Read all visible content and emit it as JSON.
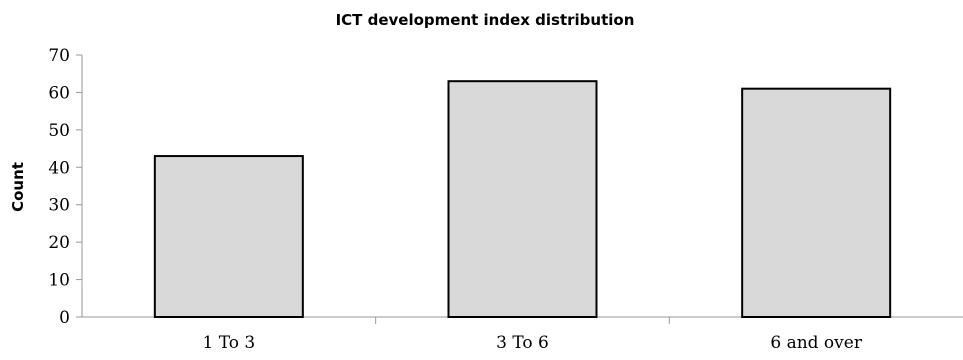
{
  "chart_data": {
    "type": "bar",
    "title": "ICT development index distribution",
    "xlabel": "",
    "ylabel": "Count",
    "categories": [
      "1 To 3",
      "3 To 6",
      "6 and over"
    ],
    "values": [
      43,
      63,
      61
    ],
    "ylim": [
      0,
      70
    ],
    "yticks": [
      "0",
      "10",
      "20",
      "30",
      "40",
      "50",
      "60",
      "70"
    ],
    "grid": false,
    "legend": "none",
    "colors": {
      "bar_fill": "#d9d9d9",
      "bar_stroke": "#000000",
      "axis": "#999999"
    }
  }
}
